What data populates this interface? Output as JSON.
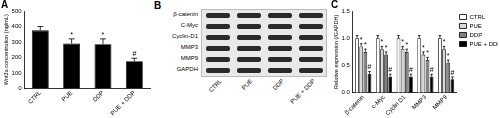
{
  "chart_data": [
    {
      "type": "bar",
      "title": "A",
      "y_label": "Wnt3a concentration (ng/mL)",
      "categories": [
        "CTRL",
        "PUE",
        "DDP",
        "PUE + DDP"
      ],
      "values": [
        375,
        290,
        285,
        175
      ],
      "errors": [
        25,
        30,
        35,
        20
      ],
      "significance": [
        null,
        "*",
        "*",
        "#"
      ],
      "color": "#000000",
      "ylim": [
        0,
        500
      ],
      "yticks": [
        0,
        100,
        200,
        300,
        400,
        500
      ],
      "grid": false
    },
    {
      "type": "bar",
      "title": "C",
      "y_label": "Relative expression (/GAPDH)",
      "categories": [
        "β-catenin",
        "c-Myc",
        "Cyclin D1",
        "MMP3",
        "MMP9"
      ],
      "series": [
        {
          "name": "CTRL",
          "color": "#ffffff",
          "values": [
            1.0,
            1.0,
            1.0,
            1.0,
            1.0
          ],
          "errors": [
            0.05,
            0.05,
            0.05,
            0.05,
            0.05
          ]
        },
        {
          "name": "PUE",
          "color": "#d9d9d9",
          "values": [
            0.85,
            0.8,
            0.8,
            0.7,
            0.8
          ],
          "errors": [
            0.05,
            0.05,
            0.05,
            0.05,
            0.05
          ],
          "significance": [
            "*",
            "*",
            "*",
            "*",
            "*"
          ]
        },
        {
          "name": "DDP",
          "color": "#808080",
          "values": [
            0.75,
            0.7,
            0.75,
            0.6,
            0.55
          ],
          "errors": [
            0.05,
            0.05,
            0.05,
            0.05,
            0.05
          ],
          "significance": [
            "*",
            "*",
            "*",
            "*",
            "*"
          ]
        },
        {
          "name": "PUE + DDP",
          "color": "#000000",
          "values": [
            0.35,
            0.3,
            0.3,
            0.3,
            0.25
          ],
          "errors": [
            0.04,
            0.04,
            0.04,
            0.04,
            0.04
          ],
          "significance": [
            "#",
            "#",
            "#",
            "#",
            "#"
          ]
        }
      ],
      "ylim": [
        0,
        1.5
      ],
      "yticks": [
        {
          "value": 0,
          "label": "0.0"
        },
        0.5,
        {
          "value": 1,
          "label": "1.0"
        },
        1.5
      ],
      "legend": "right",
      "grid": false
    }
  ],
  "blot": {
    "title": "B",
    "rows": [
      "β-catenin",
      "C-Myc",
      "Cyclin-D1",
      "MMP3",
      "MMP9",
      "GAPDH"
    ],
    "columns": [
      "CTRL",
      "PUE",
      "DDP",
      "PUE + DDP"
    ]
  }
}
